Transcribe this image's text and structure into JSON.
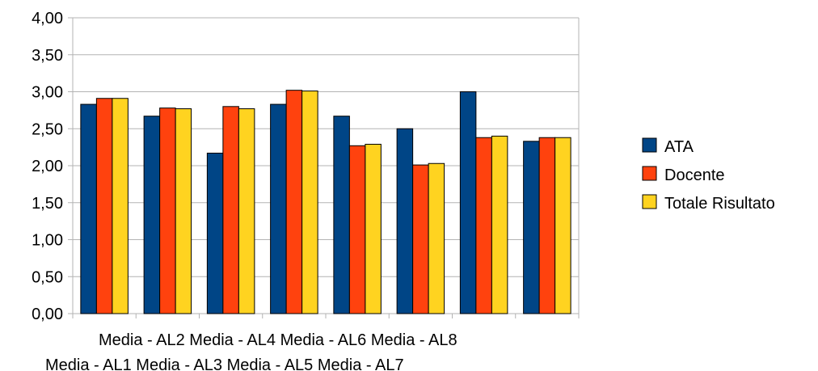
{
  "chart_data": {
    "type": "bar",
    "categories": [
      "Media - AL1",
      "Media - AL2",
      "Media - AL3",
      "Media - AL4",
      "Media - AL5",
      "Media - AL6",
      "Media - AL7",
      "Media - AL8"
    ],
    "series": [
      {
        "name": "ATA",
        "color": "#004586",
        "values": [
          2.83,
          2.67,
          2.17,
          2.83,
          2.67,
          2.5,
          3.0,
          2.33
        ]
      },
      {
        "name": "Docente",
        "color": "#ff420e",
        "values": [
          2.91,
          2.78,
          2.8,
          3.02,
          2.27,
          2.01,
          2.38,
          2.38
        ]
      },
      {
        "name": "Totale Risultato",
        "color": "#ffd320",
        "values": [
          2.91,
          2.77,
          2.77,
          3.01,
          2.29,
          2.03,
          2.4,
          2.38
        ]
      }
    ],
    "yticks": [
      "0,00",
      "0,50",
      "1,00",
      "1,50",
      "2,00",
      "2,50",
      "3,00",
      "3,50",
      "4,00"
    ],
    "ylim": [
      0,
      4
    ],
    "grid": true,
    "legend_position": "right",
    "title": "",
    "xlabel": "",
    "ylabel": ""
  }
}
